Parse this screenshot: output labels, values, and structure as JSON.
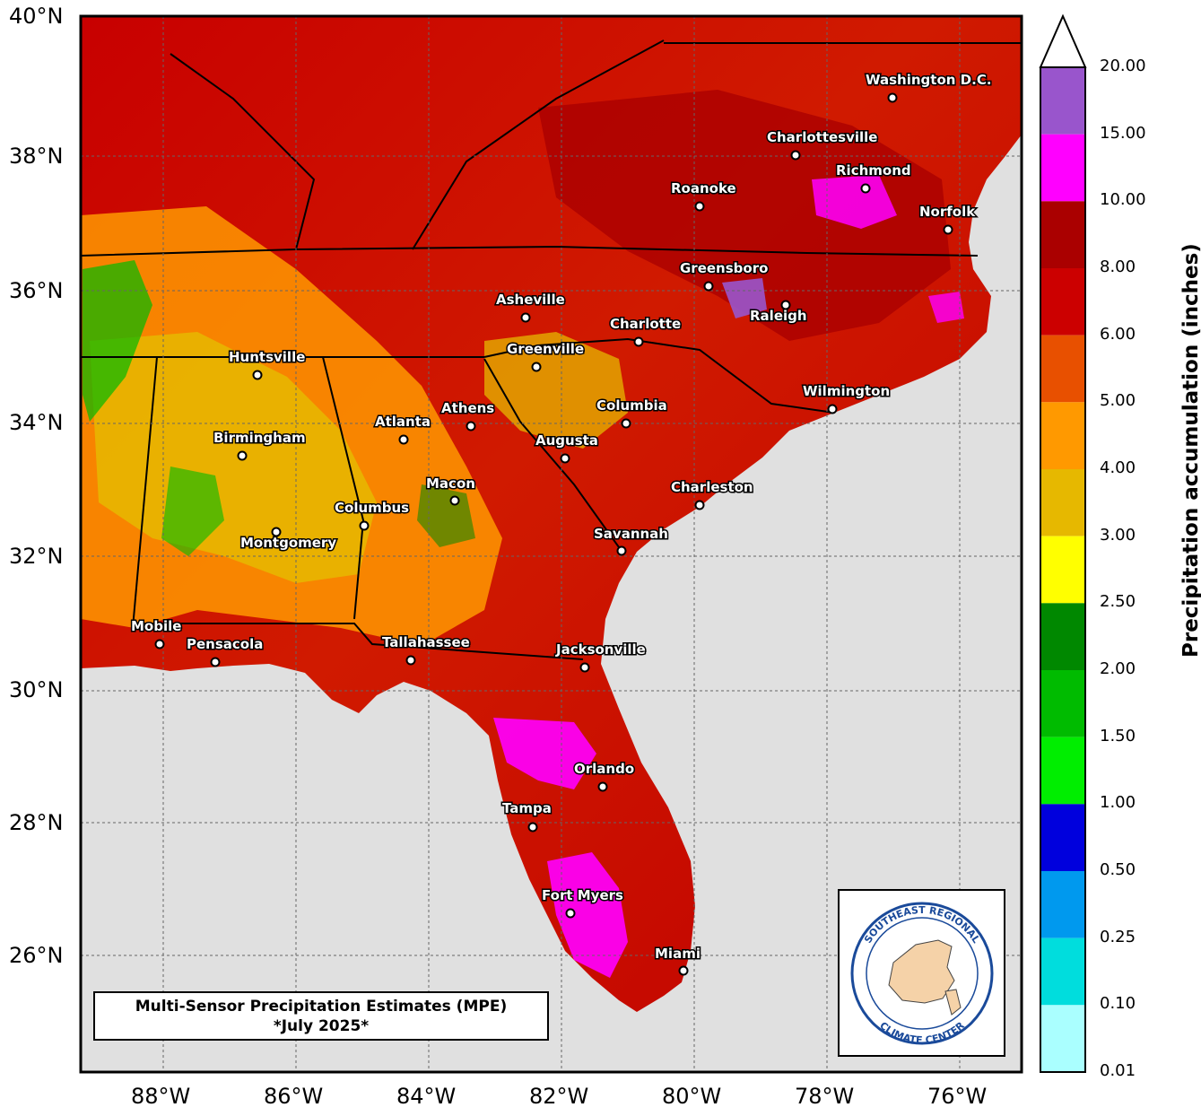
{
  "map": {
    "title_line1": "Multi-Sensor Precipitation Estimates (MPE)",
    "title_line2": "*July 2025*",
    "lat_labels": [
      "40°N",
      "38°N",
      "36°N",
      "34°N",
      "32°N",
      "30°N",
      "28°N",
      "26°N"
    ],
    "lon_labels": [
      "88°W",
      "86°W",
      "84°W",
      "82°W",
      "80°W",
      "78°W",
      "76°W"
    ],
    "cities": [
      "Washington D.C.",
      "Charlottesville",
      "Richmond",
      "Roanoke",
      "Norfolk",
      "Greensboro",
      "Raleigh",
      "Asheville",
      "Charlotte",
      "Greenville",
      "Huntsville",
      "Wilmington",
      "Athens",
      "Columbia",
      "Atlanta",
      "Birmingham",
      "Augusta",
      "Macon",
      "Charleston",
      "Columbus",
      "Montgomery",
      "Savannah",
      "Mobile",
      "Pensacola",
      "Tallahassee",
      "Jacksonville",
      "Orlando",
      "Tampa",
      "Fort Myers",
      "Miami"
    ],
    "ocean_color": "#e0e0e0"
  },
  "colorbar": {
    "title": "Precipitation accumulation (inches)",
    "levels": [
      "20.00",
      "15.00",
      "10.00",
      "8.00",
      "6.00",
      "5.00",
      "4.00",
      "3.00",
      "2.50",
      "2.00",
      "1.50",
      "1.00",
      "0.50",
      "0.25",
      "0.10",
      "0.01"
    ],
    "colors": [
      "#9955cc",
      "#ff00ff",
      "#aa0000",
      "#cc0000",
      "#e85000",
      "#ff9900",
      "#e6b800",
      "#ffff00",
      "#008800",
      "#00bb00",
      "#00ee00",
      "#0000dd",
      "#0099ee",
      "#00dddd",
      "#aaffff"
    ]
  },
  "logo": {
    "top_text": "SOUTHEAST REGIONAL",
    "bottom_text": "CLIMATE CENTER"
  }
}
